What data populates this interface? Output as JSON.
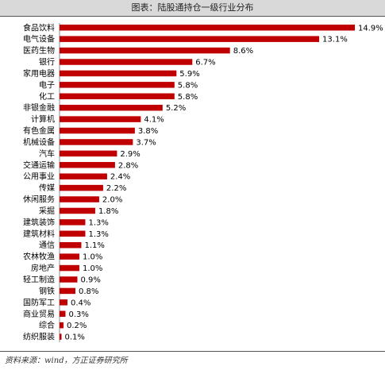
{
  "header": {
    "title": "图表：陆股通持仓一级行业分布"
  },
  "footer": {
    "source": "资料来源：wind，方正证券研究所"
  },
  "colors": {
    "bar": "#c00000",
    "title_bg": "#d9d9d9"
  },
  "chart_data": {
    "type": "bar",
    "orientation": "horizontal",
    "title": "图表：陆股通持仓一级行业分布",
    "xlabel": "",
    "ylabel": "",
    "xlim": [
      0,
      14.9
    ],
    "value_suffix": "%",
    "grid": false,
    "legend": "none",
    "categories": [
      "食品饮料",
      "电气设备",
      "医药生物",
      "银行",
      "家用电器",
      "电子",
      "化工",
      "非银金融",
      "计算机",
      "有色金属",
      "机械设备",
      "汽车",
      "交通运输",
      "公用事业",
      "传媒",
      "休闲服务",
      "采掘",
      "建筑装饰",
      "建筑材料",
      "通信",
      "农林牧渔",
      "房地产",
      "轻工制造",
      "钢铁",
      "国防军工",
      "商业贸易",
      "综合",
      "纺织服装"
    ],
    "values": [
      14.9,
      13.1,
      8.6,
      6.7,
      5.9,
      5.8,
      5.8,
      5.2,
      4.1,
      3.8,
      3.7,
      2.9,
      2.8,
      2.4,
      2.2,
      2.0,
      1.8,
      1.3,
      1.3,
      1.1,
      1.0,
      1.0,
      0.9,
      0.8,
      0.4,
      0.3,
      0.2,
      0.1
    ],
    "value_labels": [
      "14.9%",
      "13.1%",
      "8.6%",
      "6.7%",
      "5.9%",
      "5.8%",
      "5.8%",
      "5.2%",
      "4.1%",
      "3.8%",
      "3.7%",
      "2.9%",
      "2.8%",
      "2.4%",
      "2.2%",
      "2.0%",
      "1.8%",
      "1.3%",
      "1.3%",
      "1.1%",
      "1.0%",
      "1.0%",
      "0.9%",
      "0.8%",
      "0.4%",
      "0.3%",
      "0.2%",
      "0.1%"
    ]
  }
}
